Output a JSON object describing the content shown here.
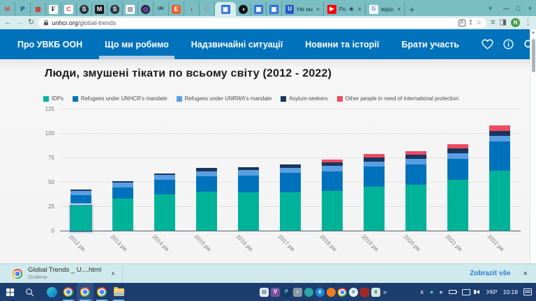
{
  "browser": {
    "new_tab_label": "+",
    "tab_search_glyph": "∨",
    "window_controls": {
      "minimize": "—",
      "maximize": "□",
      "close": "×"
    },
    "pinned_tabs": [
      {
        "name": "gmail",
        "glyph": "M",
        "fg": "#e94335",
        "bg": "none"
      },
      {
        "name": "paypal",
        "glyph": "P",
        "fg": "#0a3e8f",
        "bg": "none"
      },
      {
        "name": "red-grid-app",
        "glyph": "▦",
        "fg": "#d23b2e",
        "bg": "none"
      },
      {
        "name": "forbes",
        "glyph": "F",
        "fg": "#111111",
        "bg": "#ffffff",
        "serif": true
      },
      {
        "name": "c-red-app",
        "glyph": "C",
        "fg": "#e8453c",
        "bg": "#ffffff"
      },
      {
        "name": "s-dark-app-1",
        "glyph": "S",
        "fg": "#ffffff",
        "bg": "#26343c",
        "round": true
      },
      {
        "name": "medium",
        "glyph": "M",
        "fg": "#ffffff",
        "bg": "#1a1a1a"
      },
      {
        "name": "s-dark-app-2",
        "glyph": "S",
        "fg": "#ffffff",
        "bg": "#26343c",
        "round": true
      },
      {
        "name": "pattern-app",
        "glyph": "▦",
        "fg": "#9aa6ad",
        "bg": "#ffffff"
      },
      {
        "name": "purple-ring-app",
        "glyph": "◎",
        "fg": "#8b5cf6",
        "bg": "#2a2638",
        "round": true
      },
      {
        "name": "uk-app",
        "glyph": "UK",
        "fg": "#103040",
        "bg": "none"
      },
      {
        "name": "e-katalog",
        "glyph": "E",
        "fg": "#ffffff",
        "bg": "#e8622c"
      },
      {
        "name": "red-arrow-app",
        "glyph": "›",
        "fg": "#c4294f",
        "bg": "none"
      },
      {
        "name": "c-gray-app",
        "glyph": "C",
        "fg": "#8a979e",
        "bg": "none"
      }
    ],
    "active_pinned_tab": {
      "name": "unhcr-active",
      "glyph": "▣",
      "fg": "#ffffff",
      "bg": "#2e6fdb"
    },
    "pinned_tabs_after": [
      {
        "name": "half-circle-app",
        "glyph": "◑",
        "fg": "#ffffff",
        "bg": "#111111",
        "round": true
      },
      {
        "name": "blue-app-1",
        "glyph": "▣",
        "fg": "#ffffff",
        "bg": "#2e6fdb"
      },
      {
        "name": "blue-app-2",
        "glyph": "▣",
        "fg": "#ffffff",
        "bg": "#2e6fdb"
      }
    ],
    "tabs": [
      {
        "name": "tab-u-page",
        "icon_glyph": "U",
        "icon_fg": "#ffffff",
        "icon_bg": "#2558c4",
        "title": "Не ма",
        "close": "×"
      },
      {
        "name": "tab-youtube",
        "icon_glyph": "▶",
        "icon_fg": "#ffffff",
        "icon_bg": "#ff0000",
        "title": "Ро",
        "audio": true,
        "close": "×"
      },
      {
        "name": "tab-google",
        "icon_glyph": "G",
        "icon_fg": "#4285f4",
        "icon_bg": "#ffffff",
        "title": "вірш",
        "close": "×"
      }
    ],
    "toolbar": {
      "back": "←",
      "forward": "→",
      "reload": "↻",
      "url_host": "unhcr.org",
      "url_path": "/global-trends",
      "translate_glyph": "A",
      "share_glyph": "↥",
      "star_glyph": "☆",
      "reading_list_glyph": "≡",
      "dark_panel_glyph": "◨",
      "avatar_letter": "N",
      "avatar_color": "#43a047",
      "menu_glyph": "⋮"
    }
  },
  "site_nav": {
    "items": [
      {
        "label": "Про УВКБ ООН",
        "active": false
      },
      {
        "label": "Що ми робимо",
        "active": true
      },
      {
        "label": "Надзвичайні ситуації",
        "active": false
      },
      {
        "label": "Новини та історії",
        "active": false
      },
      {
        "label": "Брати участь",
        "active": false
      }
    ]
  },
  "page": {
    "title": "Люди, змушені тікати по всьому світу (2012 - 2022)"
  },
  "chart_data": {
    "type": "bar",
    "stacked": true,
    "title": "Люди, змушені тікати по всьому світу (2012 - 2022)",
    "categories": [
      "2012 рік",
      "2013 рік",
      "2014 рік",
      "2015 рік",
      "2016 рік",
      "2017 рік",
      "2018 рік",
      "2019 рік",
      "2020 рік",
      "2021 рік",
      "2022 рік"
    ],
    "series": [
      {
        "name": "IDPs",
        "color": "#00B398",
        "values": [
          26.4,
          33.3,
          38.2,
          40.5,
          40.3,
          40.0,
          41.4,
          45.7,
          48.0,
          53.2,
          62.5
        ]
      },
      {
        "name": "Refugees under UNHCR's mandate",
        "color": "#0072BC",
        "values": [
          10.5,
          11.7,
          14.4,
          16.1,
          17.2,
          19.9,
          20.4,
          20.4,
          20.7,
          21.3,
          29.4
        ]
      },
      {
        "name": "Refugees under UNRWA's mandate",
        "color": "#5A9FE3",
        "values": [
          4.9,
          5.0,
          5.1,
          5.2,
          5.3,
          5.4,
          5.5,
          5.6,
          5.7,
          5.8,
          5.9
        ]
      },
      {
        "name": "Asylum-seekers",
        "color": "#18375F",
        "values": [
          0.9,
          1.2,
          1.8,
          3.2,
          2.8,
          3.1,
          3.5,
          4.2,
          4.1,
          4.6,
          5.4
        ]
      },
      {
        "name": "Other people in need of international protection",
        "color": "#EF4A60",
        "values": [
          0,
          0,
          0,
          0,
          0,
          0,
          2.6,
          3.6,
          3.9,
          4.4,
          5.2
        ]
      }
    ],
    "ylim": [
      0,
      125
    ],
    "yticks": [
      0,
      25,
      50,
      75,
      100,
      125
    ],
    "grid": true,
    "legend_position": "top",
    "highlighted": {
      "category_index": 0,
      "series_index": 0
    }
  },
  "download_bar": {
    "filename": "Global Trends _ U....html",
    "status": "Zrušeno",
    "expand_glyph": "∧",
    "show_all": "Zobrazit vše",
    "close": "×"
  },
  "taskbar": {
    "app_icons": [
      {
        "name": "edge",
        "type": "edge",
        "indicator": false,
        "active": false
      },
      {
        "name": "chrome-1",
        "type": "chrome",
        "indicator": true,
        "active": false
      },
      {
        "name": "chrome-2",
        "type": "chrome",
        "indicator": true,
        "active": true
      },
      {
        "name": "chrome-3",
        "type": "chrome",
        "indicator": true,
        "active": false
      },
      {
        "name": "file-explorer",
        "type": "folder",
        "indicator": true,
        "active": false
      }
    ],
    "center_icons": [
      {
        "name": "photos-app",
        "glyph": "▦",
        "fg": "#7fa3c0",
        "bg": "#e9eef2"
      },
      {
        "name": "purple-app",
        "glyph": "V",
        "fg": "#ffffff",
        "bg": "#7b519d"
      },
      {
        "name": "blue-p-app",
        "glyph": "P",
        "fg": "#6ec3f5",
        "bg": "#12395e"
      },
      {
        "name": "gray-app",
        "glyph": "›",
        "fg": "#ffffff",
        "bg": "#8a9aa4"
      },
      {
        "name": "globe-app",
        "glyph": "",
        "fg": "#ffffff",
        "bg": "#2aa7a0",
        "round": true
      },
      {
        "name": "edge-app",
        "glyph": "e",
        "fg": "#ffffff",
        "bg": "#1f86d8",
        "round": true
      },
      {
        "name": "firefox",
        "glyph": "",
        "fg": "#ffffff",
        "bg": "#f47b20",
        "round": true
      },
      {
        "name": "chrome-icon",
        "glyph": "",
        "fg": "",
        "bg": "",
        "chrome": true
      },
      {
        "name": "internet-explorer",
        "glyph": "e",
        "fg": "#2a7fd4",
        "bg": "#e9eef2",
        "round": true
      },
      {
        "name": "red-app",
        "glyph": "",
        "fg": "#ffffff",
        "bg": "#a42828"
      },
      {
        "name": "green-app",
        "glyph": "x",
        "fg": "#1f6b43",
        "bg": "#d6e8dc"
      }
    ],
    "overflow_glyph": "»",
    "tray_chevron": "∧",
    "language": "УКР",
    "time": "10:18"
  }
}
